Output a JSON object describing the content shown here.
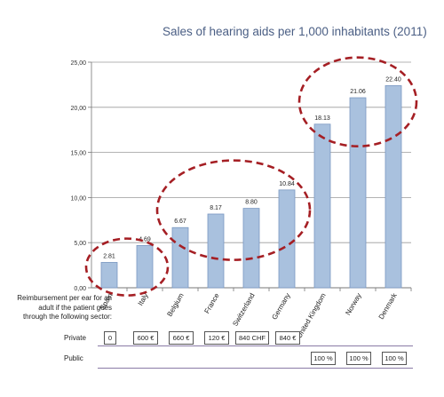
{
  "chart_data": {
    "type": "bar",
    "title": "Sales of hearing aids per 1,000 inhabitants (2011)",
    "categories": [
      "Spain",
      "Italy",
      "Belgium",
      "France",
      "Switzerland",
      "Germany",
      "United Kingdom",
      "Norway",
      "Denmark"
    ],
    "values": [
      2.81,
      4.69,
      6.67,
      8.17,
      8.8,
      10.84,
      18.13,
      21.06,
      22.4
    ],
    "value_labels": [
      "2.81",
      "4.69",
      "6.67",
      "8.17",
      "8.80",
      "10.84",
      "18.13",
      "21.06",
      "22.40"
    ],
    "yticks": [
      0,
      5,
      10,
      15,
      20,
      25
    ],
    "ytick_labels": [
      "0,00",
      "5,00",
      "10,00",
      "15,00",
      "20,00",
      "25,00"
    ],
    "ylim": [
      0,
      25
    ],
    "grid": true,
    "bar_color": "#a9c1de",
    "bar_edge": "#7a98c2",
    "annotation_color": "#a51f24",
    "xlabel": "",
    "ylabel": ""
  },
  "reimbursement": {
    "note": "Reimbursement per ear for an adult if the patient goes through the following sector:",
    "private_label": "Private",
    "public_label": "Public",
    "private_values": [
      "0",
      "600 €",
      "660 €",
      "120 €",
      "840 CHF",
      "840 €",
      "",
      "",
      ""
    ],
    "public_values": [
      "",
      "",
      "",
      "",
      "",
      "",
      "100 %",
      "100 %",
      "100 %"
    ],
    "line_color": "#8a7aa6"
  }
}
